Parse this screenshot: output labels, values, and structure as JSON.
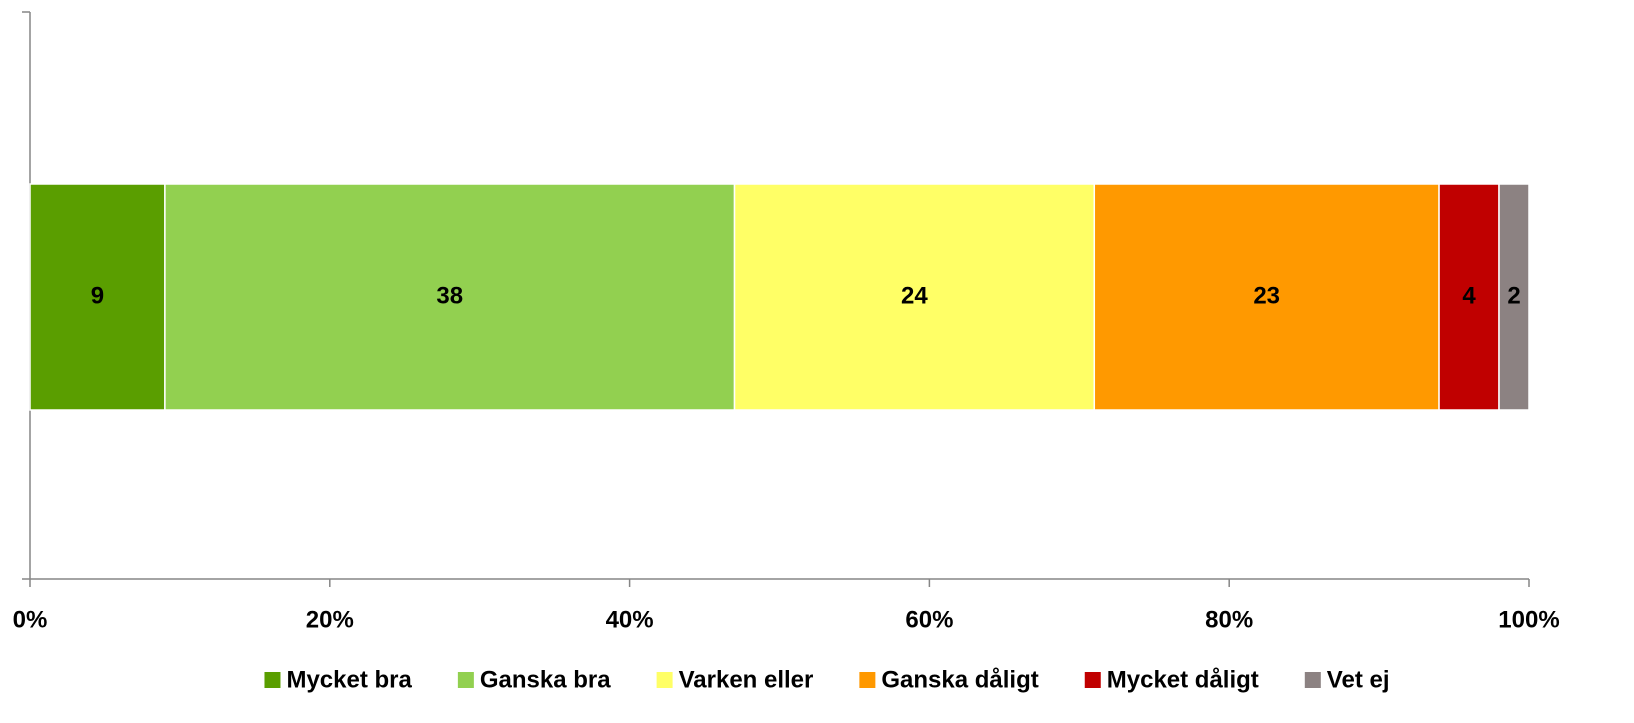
{
  "chart_data": {
    "type": "bar",
    "orientation": "horizontal",
    "stacked": true,
    "categories": [
      null
    ],
    "series": [
      {
        "name": "Mycket bra",
        "color": "#5a9e00",
        "values": [
          9
        ]
      },
      {
        "name": "Ganska bra",
        "color": "#92d050",
        "values": [
          38
        ]
      },
      {
        "name": "Varken eller",
        "color": "#ffff66",
        "values": [
          24
        ]
      },
      {
        "name": "Ganska dåligt",
        "color": "#ff9900",
        "values": [
          23
        ]
      },
      {
        "name": "Mycket dåligt",
        "color": "#c00000",
        "values": [
          4
        ]
      },
      {
        "name": "Vet ej",
        "color": "#8c8282",
        "values": [
          2
        ]
      }
    ],
    "xlim": [
      0,
      100
    ],
    "xticks": [
      {
        "value": 0,
        "label": "0%"
      },
      {
        "value": 20,
        "label": "20%"
      },
      {
        "value": 40,
        "label": "40%"
      },
      {
        "value": 60,
        "label": "60%"
      },
      {
        "value": 80,
        "label": "80%"
      },
      {
        "value": 100,
        "label": "100%"
      }
    ],
    "legend": "bottom"
  }
}
